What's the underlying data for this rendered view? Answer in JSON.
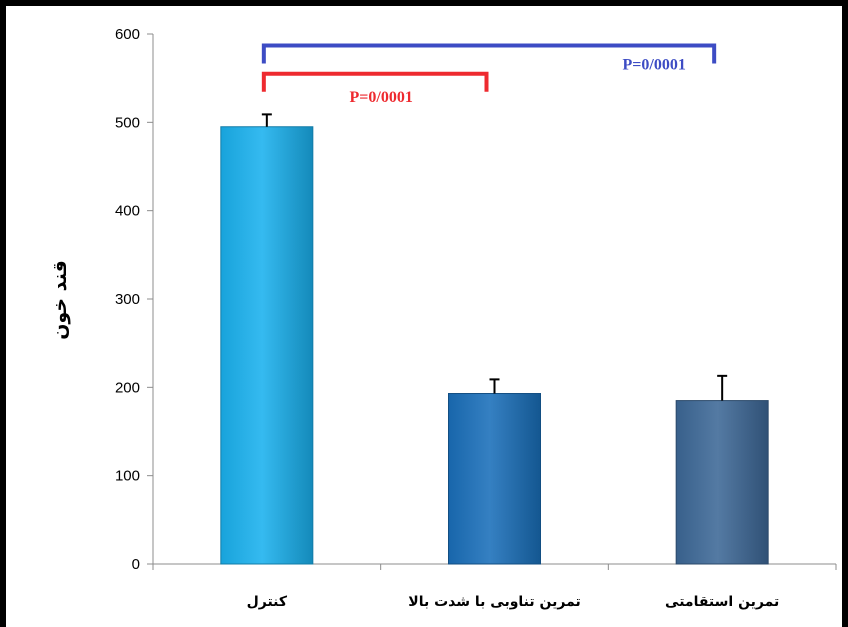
{
  "chart_data": {
    "type": "bar",
    "title": "",
    "xlabel": "",
    "ylabel": "قند خون",
    "ylim": [
      0,
      600
    ],
    "yticks": [
      0,
      100,
      200,
      300,
      400,
      500,
      600
    ],
    "grid": false,
    "categories": [
      "کنترل",
      "تمرین تناوبی با شدت بالا",
      "تمرین استقامتی"
    ],
    "values": [
      495,
      193,
      185
    ],
    "errors": [
      14,
      16,
      28
    ],
    "colors": [
      "#1ab1ee",
      "#1a6fba",
      "#3d6897"
    ],
    "annotations": [
      {
        "label": "P=0/0001",
        "from": 0,
        "to": 1,
        "level": 555,
        "color": "#ee2a2f"
      },
      {
        "label": "P=0/0001",
        "from": 0,
        "to": 2,
        "level": 587,
        "color": "#3d4cc4"
      }
    ]
  }
}
